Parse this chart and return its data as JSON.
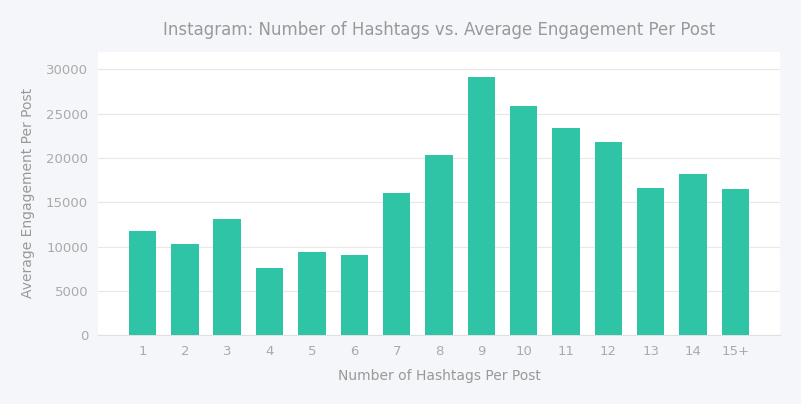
{
  "title": "Instagram: Number of Hashtags vs. Average Engagement Per Post",
  "xlabel": "Number of Hashtags Per Post",
  "ylabel": "Average Engagement Per Post",
  "categories": [
    "1",
    "2",
    "3",
    "4",
    "5",
    "6",
    "7",
    "8",
    "9",
    "10",
    "11",
    "12",
    "13",
    "14",
    "15+"
  ],
  "values": [
    11800,
    10300,
    13100,
    7600,
    9400,
    9100,
    16100,
    20300,
    29100,
    25900,
    23400,
    21800,
    16600,
    18200,
    16500
  ],
  "bar_color": "#2EC4A5",
  "figure_bg_color": "#f5f6fa",
  "plot_bg_color": "#ffffff",
  "title_color": "#999999",
  "axis_label_color": "#999999",
  "tick_label_color": "#aaaaaa",
  "grid_color": "#e8e8e8",
  "spine_color": "#e0e0e0",
  "ylim": [
    0,
    32000
  ],
  "yticks": [
    0,
    5000,
    10000,
    15000,
    20000,
    25000,
    30000
  ],
  "title_fontsize": 12,
  "axis_label_fontsize": 10,
  "tick_fontsize": 9.5
}
